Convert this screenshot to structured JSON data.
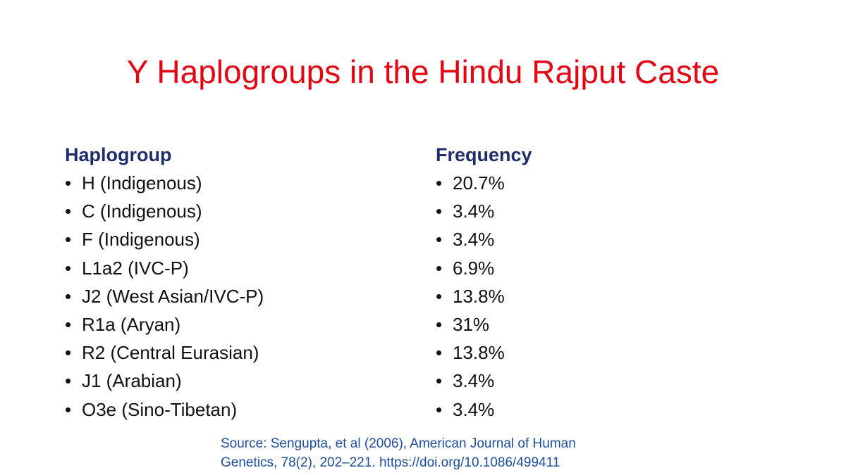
{
  "title": "Y Haplogroups in the Hindu Rajput Caste",
  "haplogroup_column": {
    "heading": "Haplogroup",
    "items": [
      "H (Indigenous)",
      "C (Indigenous)",
      "F (Indigenous)",
      "L1a2 (IVC-P)",
      "J2 (West Asian/IVC-P)",
      "R1a (Aryan)",
      "R2 (Central Eurasian)",
      "J1 (Arabian)",
      "O3e (Sino-Tibetan)"
    ]
  },
  "frequency_column": {
    "heading": "Frequency",
    "items": [
      "20.7%",
      "3.4%",
      "3.4%",
      "6.9%",
      "13.8%",
      "31%",
      "13.8%",
      "3.4%",
      "3.4%"
    ]
  },
  "bullet_glyph": "•",
  "source": {
    "line1": "Source: Sengupta, et al (2006), American Journal  of Human",
    "line2": "Genetics, 78(2), 202–221. https://doi.org/10.1086/499411"
  },
  "colors": {
    "title": "#e30613",
    "heading": "#1f2d6b",
    "source": "#1f4e9a"
  }
}
